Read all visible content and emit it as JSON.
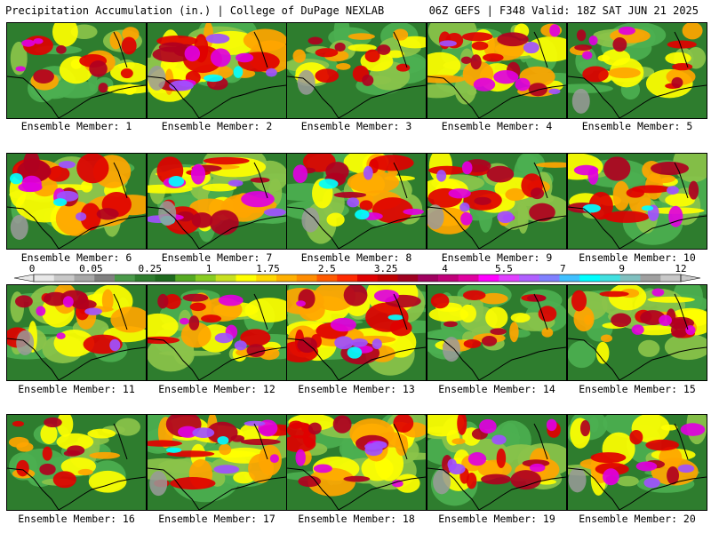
{
  "header": {
    "left_title": "Precipitation Accumulation (in.) | College of DuPage NEXLAB",
    "right_title": "06Z GEFS | F348 Valid: 18Z SAT JUN 21 2025"
  },
  "members": [
    {
      "label": "Ensemble Member: 1",
      "max_level": 4,
      "wet_fraction": 0.55
    },
    {
      "label": "Ensemble Member: 2",
      "max_level": 6,
      "wet_fraction": 0.7
    },
    {
      "label": "Ensemble Member: 3",
      "max_level": 3,
      "wet_fraction": 0.6
    },
    {
      "label": "Ensemble Member: 4",
      "max_level": 5,
      "wet_fraction": 0.7
    },
    {
      "label": "Ensemble Member: 5",
      "max_level": 4,
      "wet_fraction": 0.55
    },
    {
      "label": "Ensemble Member: 6",
      "max_level": 6,
      "wet_fraction": 0.65
    },
    {
      "label": "Ensemble Member: 7",
      "max_level": 6,
      "wet_fraction": 0.7
    },
    {
      "label": "Ensemble Member: 8",
      "max_level": 6,
      "wet_fraction": 0.6
    },
    {
      "label": "Ensemble Member: 9",
      "max_level": 5,
      "wet_fraction": 0.7
    },
    {
      "label": "Ensemble Member: 10",
      "max_level": 6,
      "wet_fraction": 0.55
    },
    {
      "label": "Ensemble Member: 11",
      "max_level": 5,
      "wet_fraction": 0.6
    },
    {
      "label": "Ensemble Member: 12",
      "max_level": 5,
      "wet_fraction": 0.6
    },
    {
      "label": "Ensemble Member: 13",
      "max_level": 6,
      "wet_fraction": 0.75
    },
    {
      "label": "Ensemble Member: 14",
      "max_level": 3,
      "wet_fraction": 0.65
    },
    {
      "label": "Ensemble Member: 15",
      "max_level": 4,
      "wet_fraction": 0.7
    },
    {
      "label": "Ensemble Member: 16",
      "max_level": 3,
      "wet_fraction": 0.55
    },
    {
      "label": "Ensemble Member: 17",
      "max_level": 6,
      "wet_fraction": 0.65
    },
    {
      "label": "Ensemble Member: 18",
      "max_level": 5,
      "wet_fraction": 0.75
    },
    {
      "label": "Ensemble Member: 19",
      "max_level": 5,
      "wet_fraction": 0.7
    },
    {
      "label": "Ensemble Member: 20",
      "max_level": 5,
      "wet_fraction": 0.55
    }
  ],
  "colorbar": {
    "labels": [
      "0",
      "0.05",
      "0.25",
      "1",
      "1.75",
      "2.5",
      "3.25",
      "4",
      "5.5",
      "7",
      "9",
      "12"
    ],
    "colors": [
      "#e8e8e8",
      "#c8c8c8",
      "#a8a8a8",
      "#808080",
      "#4a9a4a",
      "#2e7d2e",
      "#1e6a1e",
      "#55aa22",
      "#88cc22",
      "#c8e020",
      "#ffff00",
      "#ffd700",
      "#ffb000",
      "#ff8c00",
      "#ff5a00",
      "#ff2a00",
      "#e00000",
      "#c00000",
      "#a00020",
      "#a00060",
      "#c0007a",
      "#e000a0",
      "#ff00ff",
      "#e040ff",
      "#b060ff",
      "#8080ff",
      "#40c0ff",
      "#00ffff",
      "#40e0e0",
      "#80c0c0",
      "#a0a0a0",
      "#c8c8c8"
    ]
  },
  "palette": {
    "gray": "#9a9a9a",
    "dark_green": "#2e7d2e",
    "green": "#4caf50",
    "light_green": "#8bc34a",
    "yellow": "#ffff00",
    "orange": "#ffa500",
    "red": "#e00000",
    "dark_red": "#b00020",
    "magenta": "#e000e0",
    "purple": "#a050ff",
    "cyan": "#00ffff"
  }
}
